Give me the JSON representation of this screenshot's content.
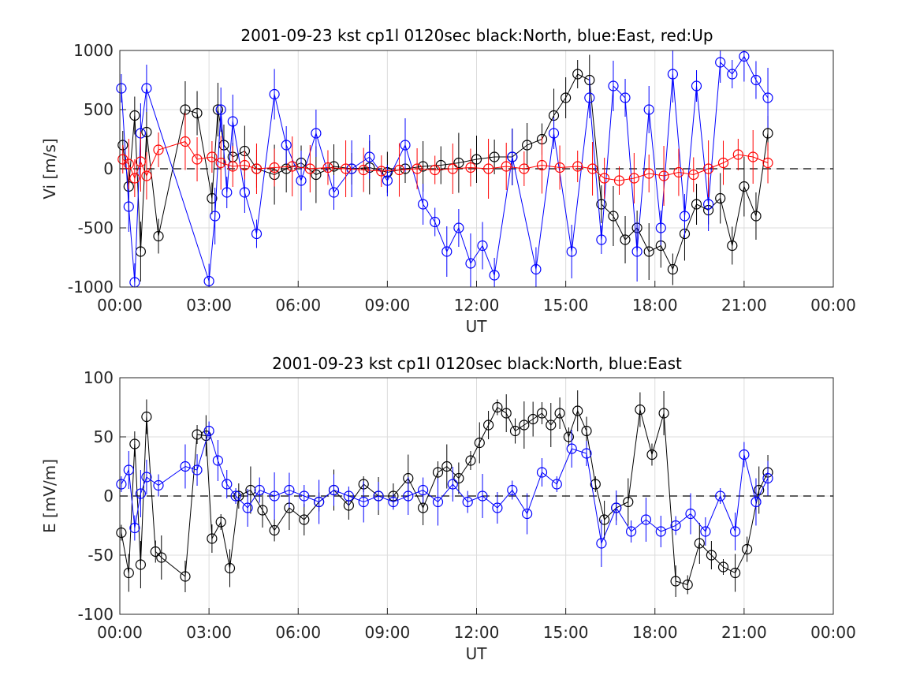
{
  "chart_data": [
    {
      "type": "scatter",
      "title": "2001-09-23 kst cp1l 0120sec black:North, blue:East, red:Up",
      "xlabel": "UT",
      "ylabel": "Vi [m/s]",
      "xlim": [
        0,
        24
      ],
      "ylim": [
        -1000,
        1000
      ],
      "xtick_values": [
        0,
        3,
        6,
        9,
        12,
        15,
        18,
        21,
        24
      ],
      "xtick_labels": [
        "00:00",
        "03:00",
        "06:00",
        "09:00",
        "12:00",
        "15:00",
        "18:00",
        "21:00",
        "00:00"
      ],
      "ytick_values": [
        1000,
        500,
        0,
        -500,
        -1000
      ],
      "ytick_labels": [
        "1000",
        "500",
        "0",
        "-500",
        "-1000"
      ],
      "grid": true,
      "zero_line": "dashed",
      "colors": {
        "North": "#000000",
        "East": "#0000ff",
        "Up": "#ff0000"
      },
      "series": [
        {
          "key": "North",
          "color": "#000000",
          "x": [
            0.1,
            0.3,
            0.5,
            0.7,
            0.9,
            1.3,
            2.2,
            2.6,
            3.1,
            3.3,
            3.5,
            3.8,
            4.2,
            4.6,
            5.2,
            5.6,
            6.1,
            6.6,
            7.2,
            7.8,
            8.4,
            9.0,
            9.6,
            10.2,
            10.8,
            11.4,
            12.0,
            12.6,
            13.2,
            13.7,
            14.2,
            14.6,
            15.0,
            15.4,
            15.8,
            16.2,
            16.6,
            17.0,
            17.4,
            17.8,
            18.2,
            18.6,
            19.0,
            19.4,
            19.8,
            20.2,
            20.6,
            21.0,
            21.4,
            21.8
          ],
          "y": [
            200,
            -150,
            450,
            -700,
            310,
            -570,
            500,
            470,
            -250,
            500,
            200,
            100,
            150,
            0,
            -50,
            0,
            50,
            -50,
            20,
            0,
            10,
            -30,
            0,
            20,
            30,
            50,
            80,
            100,
            100,
            200,
            250,
            450,
            600,
            800,
            750,
            -300,
            -400,
            -600,
            -500,
            -700,
            -650,
            -850,
            -550,
            -300,
            -350,
            -250,
            -650,
            -150,
            -400,
            300
          ]
        },
        {
          "key": "East",
          "color": "#0000ff",
          "x": [
            0.05,
            0.3,
            0.5,
            0.7,
            0.9,
            3.0,
            3.2,
            3.4,
            3.6,
            3.8,
            4.2,
            4.6,
            5.2,
            5.6,
            6.1,
            6.6,
            7.2,
            7.8,
            8.4,
            9.0,
            9.6,
            10.2,
            10.6,
            11.0,
            11.4,
            11.8,
            12.2,
            12.6,
            13.2,
            14.0,
            14.6,
            15.2,
            15.8,
            16.2,
            16.6,
            17.0,
            17.4,
            17.8,
            18.2,
            18.6,
            19.0,
            19.4,
            19.8,
            20.2,
            20.6,
            21.0,
            21.4,
            21.8
          ],
          "y": [
            680,
            -320,
            -960,
            300,
            680,
            -950,
            -400,
            500,
            -200,
            400,
            -200,
            -550,
            630,
            200,
            -100,
            300,
            -200,
            0,
            100,
            -100,
            200,
            -300,
            -450,
            -700,
            -500,
            -800,
            -650,
            -900,
            100,
            -850,
            300,
            -700,
            600,
            -600,
            700,
            600,
            -700,
            500,
            -500,
            800,
            -400,
            700,
            -300,
            900,
            800,
            950,
            750,
            600
          ]
        },
        {
          "key": "Up",
          "color": "#ff0000",
          "x": [
            0.1,
            0.3,
            0.5,
            0.7,
            0.9,
            1.3,
            2.2,
            2.6,
            3.1,
            3.4,
            3.8,
            4.2,
            4.6,
            5.2,
            5.8,
            6.4,
            7.0,
            7.6,
            8.2,
            8.8,
            9.4,
            10.0,
            10.6,
            11.2,
            11.8,
            12.4,
            13.0,
            13.6,
            14.2,
            14.8,
            15.4,
            15.9,
            16.3,
            16.8,
            17.3,
            17.8,
            18.3,
            18.8,
            19.3,
            19.8,
            20.3,
            20.8,
            21.3,
            21.8
          ],
          "y": [
            80,
            40,
            -80,
            60,
            -60,
            160,
            230,
            80,
            100,
            50,
            20,
            30,
            0,
            10,
            20,
            0,
            10,
            0,
            -10,
            -20,
            -10,
            0,
            -10,
            0,
            10,
            0,
            20,
            0,
            30,
            10,
            20,
            0,
            -80,
            -100,
            -80,
            -40,
            -60,
            -30,
            -50,
            0,
            50,
            120,
            100,
            50
          ]
        }
      ]
    },
    {
      "type": "scatter",
      "title": "2001-09-23 kst cp1l 0120sec black:North, blue:East",
      "xlabel": "UT",
      "ylabel": "E [mV/m]",
      "xlim": [
        0,
        24
      ],
      "ylim": [
        -100,
        100
      ],
      "xtick_values": [
        0,
        3,
        6,
        9,
        12,
        15,
        18,
        21,
        24
      ],
      "xtick_labels": [
        "00:00",
        "03:00",
        "06:00",
        "09:00",
        "12:00",
        "15:00",
        "18:00",
        "21:00",
        "00:00"
      ],
      "ytick_values": [
        100,
        50,
        0,
        -50,
        -100
      ],
      "ytick_labels": [
        "100",
        "50",
        "0",
        "-50",
        "-100"
      ],
      "grid": true,
      "zero_line": "dashed",
      "colors": {
        "North": "#000000",
        "East": "#0000ff"
      },
      "series": [
        {
          "key": "North",
          "color": "#000000",
          "x": [
            0.05,
            0.3,
            0.5,
            0.7,
            0.9,
            1.2,
            1.4,
            2.2,
            2.6,
            2.9,
            3.1,
            3.4,
            3.7,
            4.0,
            4.4,
            4.8,
            5.2,
            5.7,
            6.2,
            6.7,
            7.2,
            7.7,
            8.2,
            8.7,
            9.2,
            9.7,
            10.2,
            10.7,
            11.0,
            11.4,
            11.8,
            12.1,
            12.4,
            12.7,
            13.0,
            13.3,
            13.6,
            13.9,
            14.2,
            14.5,
            14.8,
            15.1,
            15.4,
            15.7,
            16.0,
            16.3,
            16.7,
            17.1,
            17.5,
            17.9,
            18.3,
            18.7,
            19.1,
            19.5,
            19.9,
            20.3,
            20.7,
            21.1,
            21.5,
            21.8
          ],
          "y": [
            -31,
            -65,
            44,
            -58,
            67,
            -47,
            -52,
            -68,
            52,
            51,
            -36,
            -22,
            -61,
            0,
            5,
            -12,
            -29,
            -10,
            -20,
            -5,
            5,
            -8,
            10,
            0,
            0,
            15,
            -10,
            20,
            25,
            15,
            30,
            45,
            60,
            75,
            70,
            55,
            60,
            65,
            70,
            60,
            70,
            50,
            72,
            55,
            10,
            -20,
            -10,
            -5,
            73,
            35,
            70,
            -72,
            -75,
            -40,
            -50,
            -60,
            -65,
            -45,
            5,
            20
          ]
        },
        {
          "key": "East",
          "color": "#0000ff",
          "x": [
            0.05,
            0.3,
            0.5,
            0.7,
            0.9,
            1.3,
            2.2,
            2.6,
            3.0,
            3.3,
            3.6,
            3.9,
            4.3,
            4.7,
            5.2,
            5.7,
            6.2,
            6.7,
            7.2,
            7.7,
            8.2,
            8.7,
            9.2,
            9.7,
            10.2,
            10.7,
            11.2,
            11.7,
            12.2,
            12.7,
            13.2,
            13.7,
            14.2,
            14.7,
            15.2,
            15.7,
            16.2,
            16.7,
            17.2,
            17.7,
            18.2,
            18.7,
            19.2,
            19.7,
            20.2,
            20.7,
            21.0,
            21.4,
            21.8
          ],
          "y": [
            10,
            22,
            -27,
            2,
            16,
            9,
            25,
            22,
            55,
            30,
            10,
            0,
            -10,
            5,
            0,
            5,
            0,
            -5,
            5,
            0,
            -5,
            0,
            -5,
            0,
            5,
            -5,
            10,
            -5,
            0,
            -10,
            5,
            -15,
            20,
            10,
            40,
            36,
            -40,
            -10,
            -30,
            -20,
            -30,
            -25,
            -15,
            -30,
            0,
            -30,
            35,
            -5,
            15
          ]
        }
      ]
    }
  ]
}
